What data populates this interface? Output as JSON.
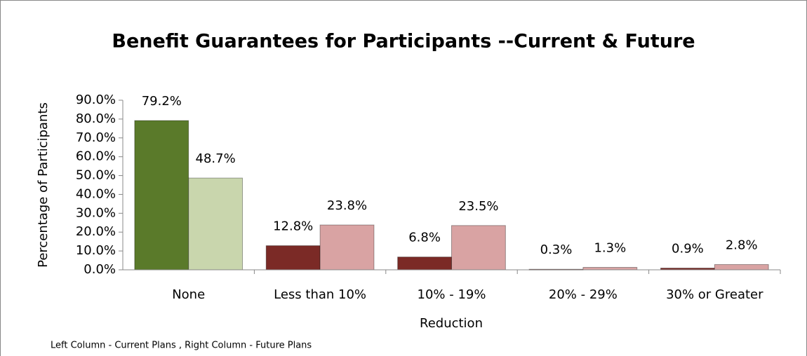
{
  "chart_data": {
    "type": "bar",
    "title": "Benefit Guarantees for  Participants --Current & Future",
    "x_label": "Reduction",
    "y_label": "Percentage of Participants",
    "footnote": "Left Column - Current Plans , Right Column - Future Plans",
    "categories": [
      "None",
      "Less than 10%",
      "10% - 19%",
      "20% - 29%",
      "30% or Greater"
    ],
    "series": [
      {
        "colors": [
          "#5a7a2a",
          "#7b2a26",
          "#7b2a26",
          "#7b2a26",
          "#7b2a26"
        ],
        "values": [
          79.2,
          12.8,
          6.8,
          0.3,
          0.9
        ],
        "value_labels": [
          "79.2%",
          "12.8%",
          "6.8%",
          "0.3%",
          "0.9%"
        ]
      },
      {
        "colors": [
          "#c9d6ad",
          "#d9a3a3",
          "#d9a3a3",
          "#d9a3a3",
          "#d9a3a3"
        ],
        "values": [
          48.7,
          23.8,
          23.5,
          1.3,
          2.8
        ],
        "value_labels": [
          "48.7%",
          "23.8%",
          "23.5%",
          "1.3%",
          "2.8%"
        ]
      }
    ],
    "ylim": [
      0,
      90
    ],
    "yticks": [
      {
        "value": 0,
        "label": "0.0%"
      },
      {
        "value": 10,
        "label": "10.0%"
      },
      {
        "value": 20,
        "label": "20.0%"
      },
      {
        "value": 30,
        "label": "30.0%"
      },
      {
        "value": 40,
        "label": "40.0%"
      },
      {
        "value": 50,
        "label": "50.0%"
      },
      {
        "value": 60,
        "label": "60.0%"
      },
      {
        "value": 70,
        "label": "70.0%"
      },
      {
        "value": 80,
        "label": "80.0%"
      },
      {
        "value": 90,
        "label": "90.0%"
      }
    ],
    "grid": false
  }
}
